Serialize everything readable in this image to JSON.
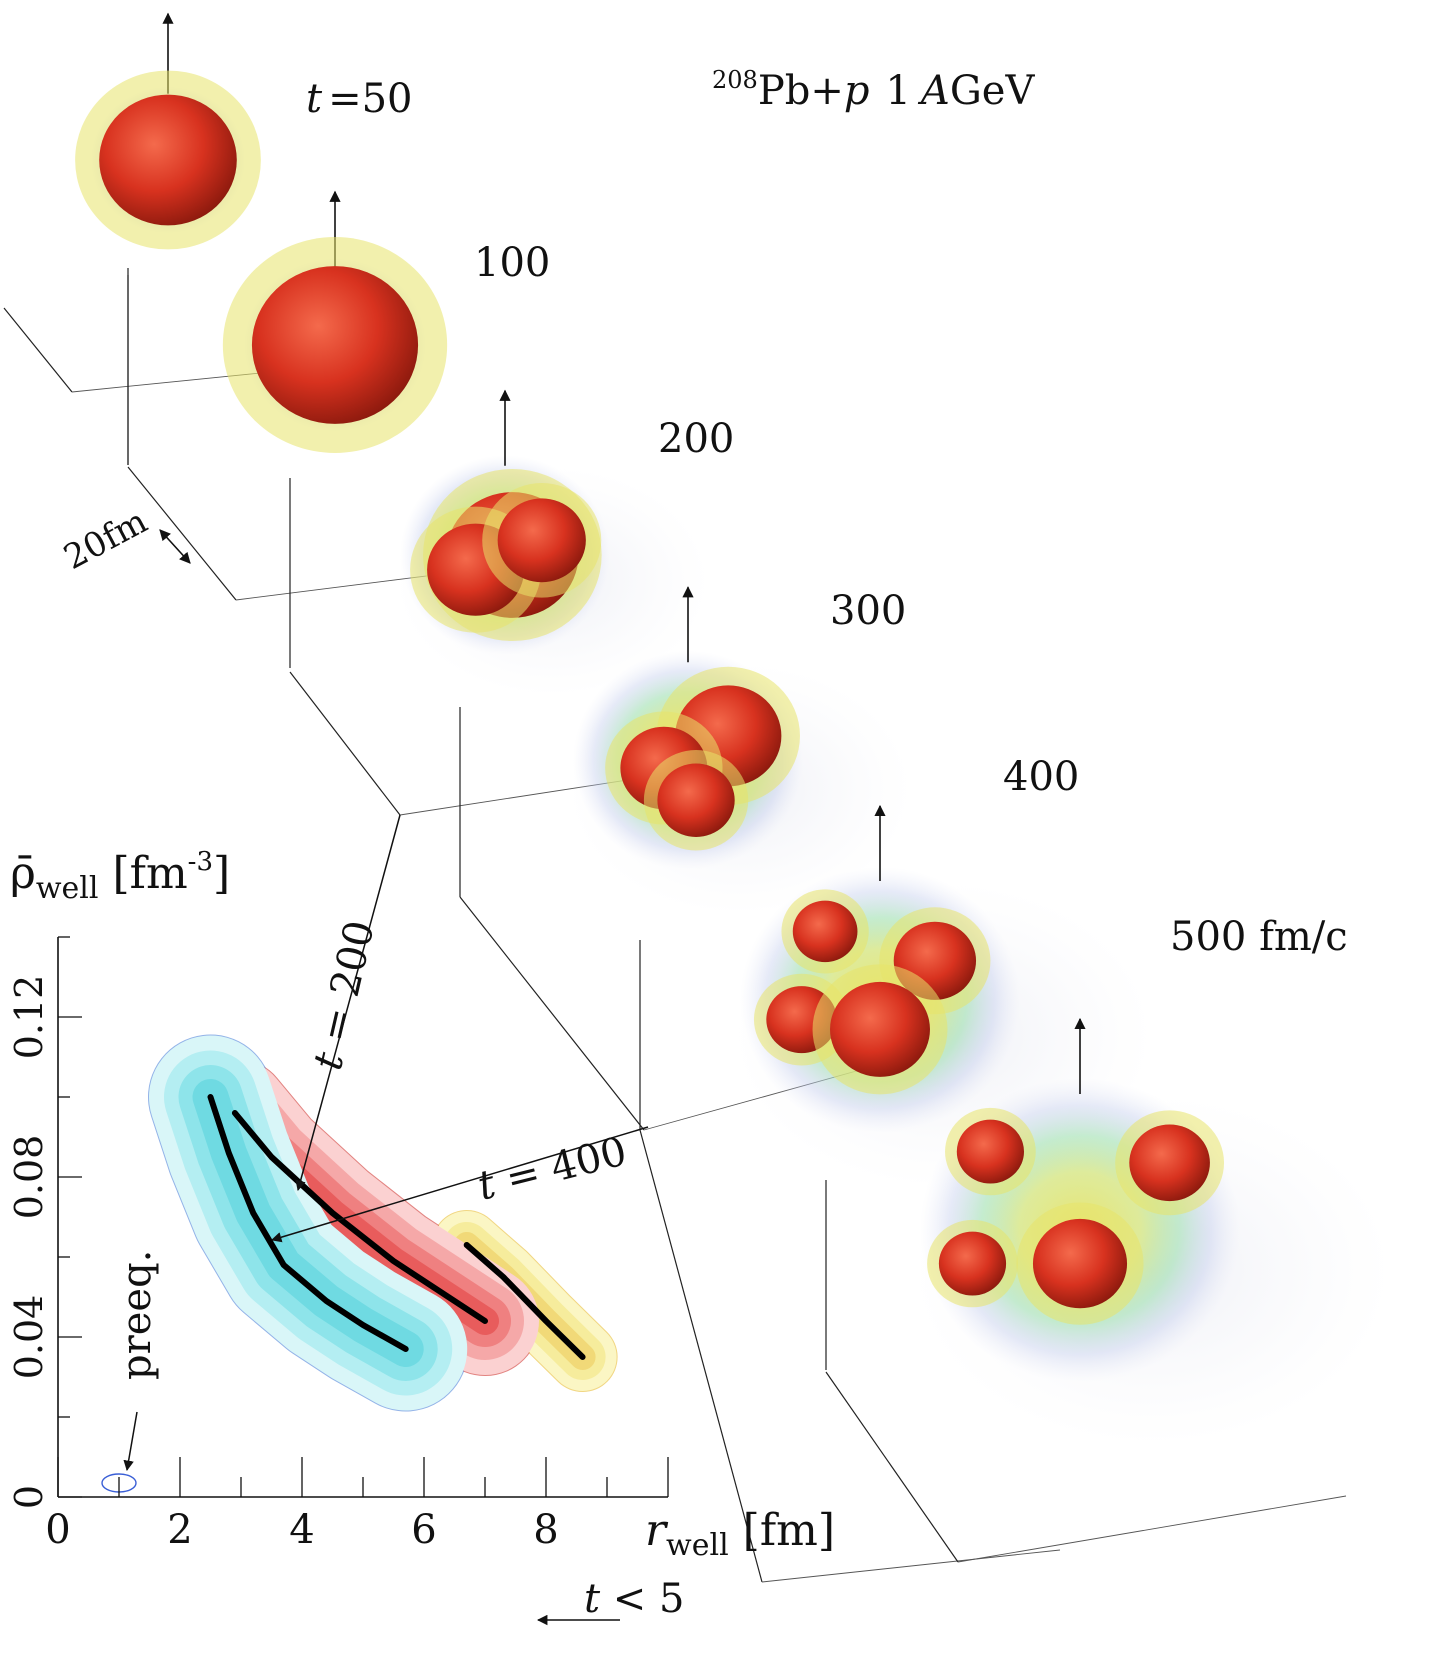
{
  "title": {
    "mass": "208",
    "reaction": "Pb+",
    "projectile": "p",
    "energy": "1",
    "energy_unit_a": "A",
    "energy_unit_rest": "GeV"
  },
  "scale_label": "20fm",
  "snapshots": [
    {
      "label": "t = 50",
      "time": 50,
      "fragments": 1
    },
    {
      "label": "100",
      "time": 100,
      "fragments": 1
    },
    {
      "label": "200",
      "time": 200,
      "fragments": 2
    },
    {
      "label": "300",
      "time": 300,
      "fragments": 3
    },
    {
      "label": "400",
      "time": 400,
      "fragments": 4
    },
    {
      "label": "500 fm/c",
      "time": 500,
      "fragments": 4
    }
  ],
  "colors": {
    "core": "#d8321f",
    "halo_yellow": "#e8e46a",
    "halo_green": "#9fe0b0",
    "halo_blue": "#b8c4ea",
    "red_band": "#f08a8a",
    "cyan_band": "#7fe3ea",
    "yellow_band": "#f7ef9a",
    "ridge": "#000000"
  },
  "chart_data": {
    "type": "contour",
    "xlabel": {
      "base": "r",
      "sub": "well",
      "unit": " [fm]"
    },
    "ylabel": {
      "base": "ρ̄",
      "sub": "well",
      "unit": " [fm",
      "sup": "-3",
      "close": "]"
    },
    "xlim": [
      0,
      10
    ],
    "ylim": [
      0,
      0.14
    ],
    "xticks": [
      0,
      2,
      4,
      6,
      8
    ],
    "yticks": [
      0,
      0.04,
      0.08,
      0.12
    ],
    "ytick_labels": [
      "0",
      "0.04",
      "0.08",
      "0.12"
    ],
    "series": [
      {
        "label": "t < 5",
        "color": "yellow",
        "ridge": [
          [
            6.7,
            0.063
          ],
          [
            7.3,
            0.055
          ],
          [
            8.0,
            0.044
          ],
          [
            8.6,
            0.035
          ]
        ]
      },
      {
        "label": "t = 200",
        "color": "red",
        "ridge": [
          [
            2.9,
            0.096
          ],
          [
            3.5,
            0.085
          ],
          [
            4.5,
            0.071
          ],
          [
            5.5,
            0.059
          ],
          [
            6.3,
            0.051
          ],
          [
            7.0,
            0.044
          ]
        ]
      },
      {
        "label": "t = 400",
        "color": "cyan",
        "ridge": [
          [
            2.5,
            0.1
          ],
          [
            2.8,
            0.086
          ],
          [
            3.2,
            0.071
          ],
          [
            3.7,
            0.058
          ],
          [
            4.4,
            0.049
          ],
          [
            5.0,
            0.043
          ],
          [
            5.7,
            0.037
          ]
        ]
      },
      {
        "label": "preeq.",
        "color": "blue",
        "ridge": [
          [
            1.0,
            0.002
          ]
        ]
      }
    ]
  }
}
